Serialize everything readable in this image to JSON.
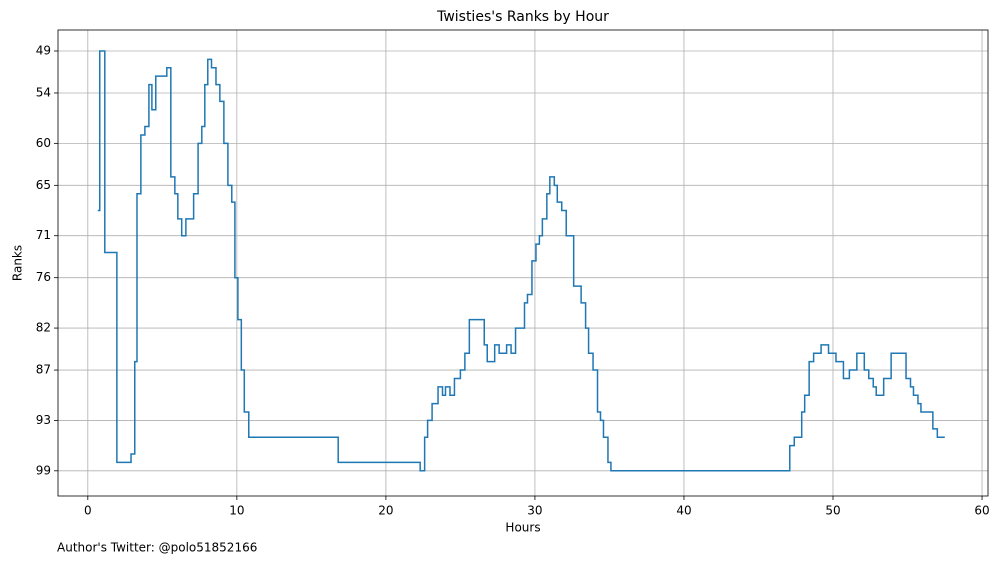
{
  "chart_data": {
    "type": "line",
    "step": "post",
    "title": "Twisties's Ranks by Hour",
    "xlabel": "Hours",
    "ylabel": "Ranks",
    "footnote": "Author's Twitter: @polo51852166",
    "grid": true,
    "color": "#1f77b4",
    "xlim": [
      -2.0,
      60.4
    ],
    "xticks": [
      0,
      10,
      20,
      30,
      40,
      50,
      60
    ],
    "ylim": [
      102,
      46.5
    ],
    "yticks": [
      49,
      54,
      60,
      65,
      71,
      76,
      82,
      87,
      93,
      99
    ],
    "x": [
      0.67,
      0.8,
      1.14,
      1.95,
      2.9,
      3.15,
      3.3,
      3.56,
      3.83,
      4.1,
      4.3,
      4.56,
      5.3,
      5.57,
      5.84,
      6.04,
      6.3,
      6.58,
      7.1,
      7.4,
      7.65,
      7.85,
      8.05,
      8.3,
      8.6,
      8.86,
      9.13,
      9.4,
      9.66,
      9.87,
      10.07,
      10.3,
      10.5,
      10.8,
      16.8,
      22.3,
      22.6,
      22.8,
      23.1,
      23.5,
      23.8,
      24.0,
      24.3,
      24.6,
      25.0,
      25.3,
      25.6,
      26.6,
      26.8,
      27.3,
      27.6,
      28.1,
      28.4,
      28.7,
      29.3,
      29.5,
      29.8,
      30.07,
      30.3,
      30.5,
      30.8,
      31.0,
      31.3,
      31.5,
      31.8,
      32.1,
      32.6,
      33.1,
      33.4,
      33.6,
      33.9,
      34.2,
      34.4,
      34.6,
      34.9,
      35.1,
      47.1,
      47.4,
      47.9,
      48.1,
      48.4,
      48.7,
      49.2,
      49.7,
      50.2,
      50.7,
      51.1,
      51.6,
      52.1,
      52.4,
      52.7,
      52.9,
      53.4,
      53.9,
      54.9,
      55.2,
      55.4,
      55.7,
      55.9,
      56.7,
      57.0,
      57.5
    ],
    "values": [
      68,
      49,
      73,
      98,
      97,
      86,
      66,
      59,
      58,
      53,
      56,
      52,
      51,
      64,
      66,
      69,
      71,
      69,
      66,
      60,
      58,
      53,
      50,
      51,
      53,
      55,
      60,
      65,
      67,
      76,
      81,
      87,
      92,
      95,
      98,
      99,
      95,
      93,
      91,
      89,
      90,
      89,
      90,
      88,
      87,
      85,
      81,
      84,
      86,
      84,
      85,
      84,
      85,
      82,
      79,
      78,
      74,
      72,
      71,
      69,
      66,
      64,
      65,
      67,
      68,
      71,
      77,
      79,
      82,
      85,
      87,
      92,
      93,
      95,
      98,
      99,
      96,
      95,
      92,
      90,
      86,
      85,
      84,
      85,
      86,
      88,
      87,
      85,
      87,
      88,
      89,
      90,
      88,
      85,
      88,
      89,
      90,
      91,
      92,
      94,
      95,
      95
    ]
  }
}
